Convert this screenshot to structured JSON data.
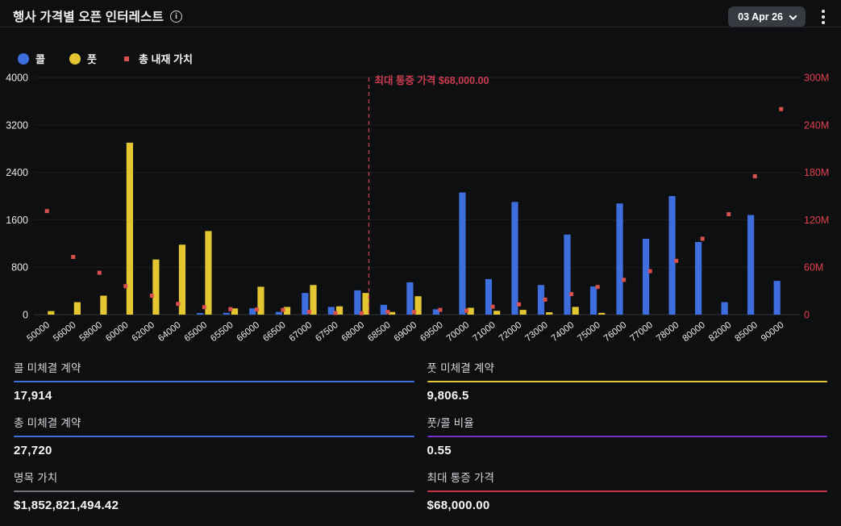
{
  "header": {
    "title": "행사 가격별 오픈 인터레스트",
    "info_icon": "info-circle",
    "date_selector": {
      "value": "03 Apr 26"
    },
    "menu_icon": "kebab-menu"
  },
  "legend": [
    {
      "label": "콜",
      "shape": "circle",
      "color": "#3e6edd"
    },
    {
      "label": "풋",
      "shape": "circle",
      "color": "#e4c532"
    },
    {
      "label": "총 내재 가치",
      "shape": "square",
      "color": "#d8504c"
    }
  ],
  "chart_data": {
    "type": "bar",
    "title": "행사 가격별 오픈 인터레스트",
    "categories": [
      "50000",
      "56000",
      "58000",
      "60000",
      "62000",
      "64000",
      "65000",
      "65500",
      "66000",
      "66500",
      "67000",
      "67500",
      "68000",
      "68500",
      "69000",
      "69500",
      "70000",
      "71000",
      "72000",
      "73000",
      "74000",
      "75000",
      "76000",
      "77000",
      "78000",
      "80000",
      "82000",
      "85000",
      "90000"
    ],
    "series": [
      {
        "name": "콜",
        "type": "bar",
        "axis": "left",
        "color": "#3e6edd",
        "values": [
          0,
          0,
          0,
          0,
          0,
          0,
          20,
          30,
          105,
          45,
          365,
          130,
          410,
          165,
          545,
          90,
          2060,
          600,
          1900,
          500,
          1350,
          475,
          1875,
          1280,
          2000,
          1225,
          210,
          1680,
          570
        ]
      },
      {
        "name": "풋",
        "type": "bar",
        "axis": "left",
        "color": "#e4c532",
        "values": [
          60,
          210,
          320,
          2900,
          930,
          1180,
          1410,
          105,
          470,
          130,
          500,
          140,
          365,
          45,
          310,
          0,
          115,
          65,
          80,
          40,
          130,
          30,
          0,
          0,
          0,
          0,
          0,
          0,
          0
        ]
      },
      {
        "name": "총 내재 가치",
        "type": "scatter",
        "axis": "right",
        "color": "#d8504c",
        "unit": "M",
        "values": [
          131,
          73,
          53,
          36,
          24,
          13.5,
          9.5,
          7,
          6.5,
          6,
          3.5,
          2,
          1.8,
          3.4,
          3.4,
          6,
          5,
          10,
          13,
          19,
          26,
          35,
          44,
          55,
          68,
          96,
          127,
          175,
          260
        ]
      }
    ],
    "left_axis": {
      "max": 4000,
      "ticks": [
        {
          "v": 4000,
          "label": "4000"
        },
        {
          "v": 3200,
          "label": "3200"
        },
        {
          "v": 2400,
          "label": "2400"
        },
        {
          "v": 1600,
          "label": "1600"
        },
        {
          "v": 800,
          "label": "800"
        },
        {
          "v": 0,
          "label": "0"
        }
      ],
      "color": "#e9eaeb"
    },
    "right_axis": {
      "max": 300,
      "ticks": [
        {
          "v": 300,
          "label": "300M"
        },
        {
          "v": 240,
          "label": "240M"
        },
        {
          "v": 180,
          "label": "180M"
        },
        {
          "v": 120,
          "label": "120M"
        },
        {
          "v": 60,
          "label": "60M"
        },
        {
          "v": 0,
          "label": "0"
        }
      ],
      "color": "#e0404b"
    },
    "max_pain": {
      "category": "68000",
      "label": "최대 통증 가격 $68,000.00",
      "color": "#cb3d4f"
    },
    "grid": true,
    "legend_position": "top-left",
    "x_label_rotation": -38
  },
  "stats": {
    "items": [
      {
        "label": "콜 미체결 계약",
        "value": "17,914",
        "accent": "#3e6edd"
      },
      {
        "label": "풋 미체결 계약",
        "value": "9,806.5",
        "accent": "#e4c532"
      },
      {
        "label": "총 미체결 계약",
        "value": "27,720",
        "accent": "#3e6edd"
      },
      {
        "label": "풋/콜 비율",
        "value": "0.55",
        "accent": "#7430c9"
      },
      {
        "label": "명목 가치",
        "value": "$1,852,821,494.42",
        "accent": "#71757b"
      },
      {
        "label": "최대 통증 가격",
        "value": "$68,000.00",
        "accent": "#cd3347"
      }
    ]
  }
}
